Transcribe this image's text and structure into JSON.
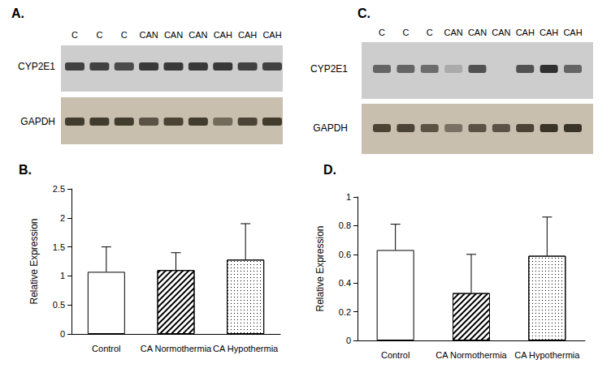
{
  "blots": [
    {
      "title": "A.",
      "lanes": [
        "C",
        "C",
        "C",
        "CAN",
        "CAN",
        "CAN",
        "CAH",
        "CAH",
        "CAH"
      ],
      "rows": [
        {
          "label": "CYP2E1",
          "intensity": [
            0.8,
            0.8,
            0.75,
            0.85,
            0.85,
            0.85,
            0.85,
            0.8,
            0.8
          ]
        },
        {
          "label": "GAPDH",
          "intensity": [
            0.85,
            0.85,
            0.85,
            0.7,
            0.8,
            0.85,
            0.55,
            0.8,
            0.85
          ]
        }
      ]
    },
    {
      "title": "C.",
      "lanes": [
        "C",
        "C",
        "C",
        "CAN",
        "CAN",
        "CAN",
        "CAH",
        "CAH",
        "CAH"
      ],
      "rows": [
        {
          "label": "CYP2E1",
          "intensity": [
            0.6,
            0.6,
            0.55,
            0.2,
            0.7,
            0.0,
            0.7,
            0.9,
            0.6
          ]
        },
        {
          "label": "GAPDH",
          "intensity": [
            0.8,
            0.8,
            0.7,
            0.5,
            0.7,
            0.7,
            0.8,
            0.9,
            0.9
          ]
        }
      ]
    }
  ],
  "chart_data": [
    {
      "type": "bar",
      "title": "B.",
      "categories": [
        "Control",
        "CA Normothermia",
        "CA Hypothermia"
      ],
      "values": [
        1.07,
        1.1,
        1.28
      ],
      "errors": [
        0.43,
        0.3,
        0.62
      ],
      "colors": [
        "#ffffff",
        "#ffffff",
        "#ffffff"
      ],
      "ylabel": "Relative Expression",
      "ylim": [
        0,
        2.5
      ],
      "yticks": [
        0,
        0.5,
        1,
        1.5,
        2,
        2.5
      ],
      "grid": false
    },
    {
      "type": "bar",
      "title": "D.",
      "categories": [
        "Control",
        "CA Normothermia",
        "CA Hypothermia"
      ],
      "values": [
        0.63,
        0.33,
        0.59
      ],
      "errors": [
        0.18,
        0.27,
        0.27
      ],
      "colors": [
        "#ffffff",
        "#ffffff",
        "#ffffff"
      ],
      "ylabel": "Relative Expression",
      "ylim": [
        0,
        1
      ],
      "yticks": [
        0,
        0.2,
        0.4,
        0.6,
        0.8,
        1
      ],
      "grid": false
    }
  ]
}
